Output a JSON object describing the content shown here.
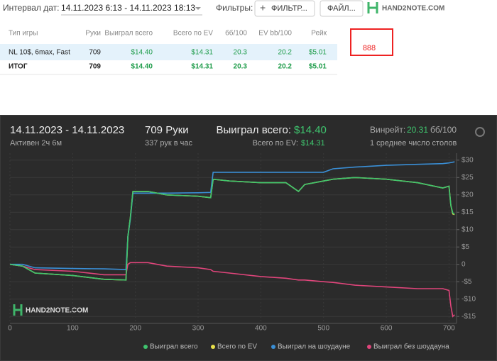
{
  "toolbar": {
    "date_label": "Интервал дат:",
    "date_range": "14.11.2023 6:13 - 14.11.2023 18:13",
    "filters_label": "Фильтры:",
    "filter_button": "ФИЛЬТР...",
    "file_button": "ФАЙЛ...",
    "logo": "HAND2NOTE.COM"
  },
  "table": {
    "columns": [
      "Тип игры",
      "Руки",
      "Выиграл всего",
      "Всего по EV",
      "бб/100",
      "EV bb/100",
      "Рейк"
    ],
    "rows": [
      [
        "NL 10$, 6max, Fast",
        "709",
        "$14.40",
        "$14.31",
        "20.3",
        "20.2",
        "$5.01"
      ],
      [
        "ИТОГ",
        "709",
        "$14.40",
        "$14.31",
        "20.3",
        "20.2",
        "$5.01"
      ]
    ]
  },
  "badge": "888",
  "summary": {
    "date_range": "14.11.2023 - 14.11.2023",
    "active": "Активен 2ч 6м",
    "hands": "709 Руки",
    "hands_per_hour": "337 рук в час",
    "won_label": "Выиграл всего:",
    "won_value": "$14.40",
    "ev_label": "Всего по EV:",
    "ev_value": "$14.31",
    "winrate_label": "Винрейт:",
    "winrate_value": "20.31",
    "winrate_unit": "бб/100",
    "tables": "1 среднее число столов"
  },
  "chart_data": {
    "type": "line",
    "watermark": "HAND2NOTE.COM",
    "x": [
      0,
      20,
      40,
      100,
      150,
      185,
      188,
      192,
      196,
      220,
      250,
      300,
      320,
      324,
      350,
      400,
      440,
      460,
      470,
      500,
      515,
      550,
      600,
      650,
      690,
      700,
      703,
      706,
      709
    ],
    "series": [
      {
        "name": "Всего по EV",
        "color": "#e8e04a",
        "values": [
          0,
          -0.5,
          -2.5,
          -3.2,
          -4.3,
          -4.5,
          8,
          13.5,
          21,
          21,
          20,
          19.6,
          19.2,
          24.5,
          24,
          23.5,
          23.5,
          21,
          23,
          24,
          24.5,
          25,
          24.5,
          23.5,
          22,
          22.5,
          17,
          14.5,
          14.31
        ]
      },
      {
        "name": "Выиграл без шоудауна",
        "color": "#e0457b",
        "values": [
          0,
          -0.5,
          -1.5,
          -2,
          -3,
          -3,
          0,
          0.5,
          0.5,
          0.5,
          -0.5,
          -1,
          -1.5,
          -2,
          -2.5,
          -3.5,
          -4,
          -4.5,
          -4.5,
          -5,
          -5.2,
          -6,
          -6.5,
          -7,
          -7,
          -7.5,
          -12,
          -15,
          -14.5
        ]
      },
      {
        "name": "Выиграл на шоудауне",
        "color": "#3a8fd6",
        "values": [
          0,
          0,
          -1,
          -1.2,
          -1.3,
          -1.5,
          8,
          13,
          20.5,
          20.5,
          20.5,
          20.6,
          20.7,
          26.5,
          26.5,
          26.5,
          26.5,
          26.5,
          26.5,
          26.5,
          27.5,
          28,
          28.5,
          28.8,
          29,
          29.2,
          29.3,
          29.4,
          29.5
        ]
      },
      {
        "name": "Выиграл всего",
        "color": "#3fc46e",
        "values": [
          0,
          -0.5,
          -2.5,
          -3.2,
          -4.3,
          -4.5,
          8,
          13.5,
          21,
          21,
          20,
          19.6,
          19.2,
          24.5,
          24,
          23.5,
          23.5,
          21,
          23,
          24,
          24.5,
          25,
          24.5,
          23.5,
          22,
          22.5,
          17,
          14.8,
          14.4
        ]
      }
    ],
    "legend_order": [
      3,
      0,
      2,
      1
    ],
    "xlim": [
      0,
      712
    ],
    "ylim": [
      -17,
      32
    ],
    "xticks": [
      0,
      100,
      200,
      300,
      400,
      500,
      600,
      700
    ],
    "yticks": [
      {
        "value": -15,
        "label": "-$15"
      },
      {
        "value": -10,
        "label": "-$10"
      },
      {
        "value": -5,
        "label": "-$5"
      },
      0,
      {
        "value": 5,
        "label": "$5"
      },
      {
        "value": 10,
        "label": "$10"
      },
      {
        "value": 15,
        "label": "$15"
      },
      {
        "value": 20,
        "label": "$20"
      },
      {
        "value": 25,
        "label": "$25"
      },
      {
        "value": 30,
        "label": "$30"
      }
    ],
    "grid": true
  }
}
